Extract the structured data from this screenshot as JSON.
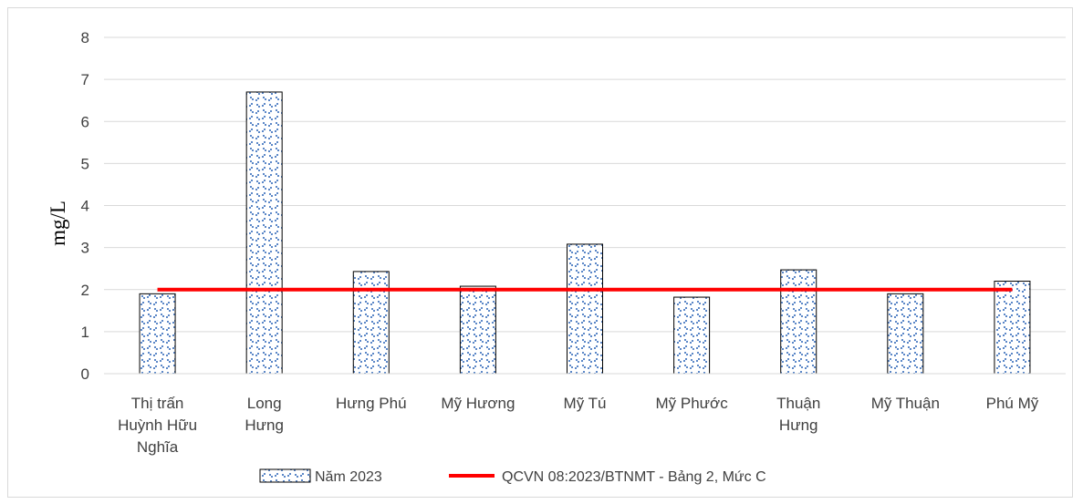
{
  "chart_data": {
    "type": "bar",
    "ylabel": "mg/L",
    "ylim": [
      0,
      8
    ],
    "yticks": [
      "0",
      "1",
      "2",
      "3",
      "4",
      "5",
      "6",
      "7",
      "8"
    ],
    "grid": true,
    "legend_position": "bottom",
    "categories": [
      [
        "Thị trấn",
        "Huỳnh Hữu",
        "Nghĩa"
      ],
      [
        "Long",
        "Hưng"
      ],
      [
        "Hưng Phú"
      ],
      [
        "Mỹ Hương"
      ],
      [
        "Mỹ Tú"
      ],
      [
        "Mỹ Phước"
      ],
      [
        "Thuận",
        "Hưng"
      ],
      [
        "Mỹ Thuận"
      ],
      [
        "Phú Mỹ"
      ]
    ],
    "series": [
      {
        "name": "Năm 2023",
        "kind": "bar",
        "color": "#4472c4",
        "values": [
          1.9,
          6.7,
          2.43,
          2.08,
          3.08,
          1.82,
          2.47,
          1.9,
          2.2
        ]
      },
      {
        "name": "QCVN 08:2023/BTNMT - Bảng 2, Mức C",
        "kind": "line",
        "color": "#ff0000",
        "value": 2
      }
    ]
  }
}
